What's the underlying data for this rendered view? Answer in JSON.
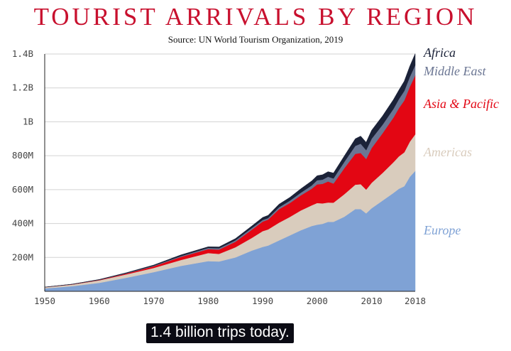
{
  "chart_data": {
    "type": "area",
    "stacked": true,
    "title": "TOURIST ARRIVALS BY REGION",
    "subtitle": "Source: UN World Tourism Organization, 2019",
    "xlabel": "",
    "ylabel": "",
    "xlim": [
      1950,
      2018
    ],
    "ylim": [
      0,
      1400000000
    ],
    "grid": "horizontal",
    "legend_placement": "right",
    "x_ticks": [
      "1950",
      "1960",
      "1970",
      "1980",
      "1990",
      "2000",
      "2010",
      "2018"
    ],
    "x_tick_values": [
      1950,
      1960,
      1970,
      1980,
      1990,
      2000,
      2010,
      2018
    ],
    "y_ticks": [
      "200M",
      "400M",
      "600M",
      "800M",
      "1B",
      "1.2B",
      "1.4B"
    ],
    "y_tick_values": [
      200000000,
      400000000,
      600000000,
      800000000,
      1000000000,
      1200000000,
      1400000000
    ],
    "x": [
      1950,
      1955,
      1960,
      1965,
      1970,
      1975,
      1980,
      1982,
      1985,
      1988,
      1990,
      1991,
      1993,
      1995,
      1997,
      1999,
      2000,
      2001,
      2002,
      2003,
      2005,
      2007,
      2008,
      2009,
      2010,
      2012,
      2014,
      2015,
      2016,
      2017,
      2018
    ],
    "series": [
      {
        "name": "Europe",
        "color": "#7fa2d5",
        "values": [
          17000000,
          30000000,
          50000000,
          80000000,
          113000000,
          150000000,
          178000000,
          176000000,
          200000000,
          240000000,
          262000000,
          270000000,
          300000000,
          330000000,
          360000000,
          385000000,
          393000000,
          398000000,
          410000000,
          410000000,
          440000000,
          485000000,
          485000000,
          460000000,
          490000000,
          535000000,
          580000000,
          605000000,
          620000000,
          675000000,
          710000000
        ]
      },
      {
        "name": "Americas",
        "color": "#d9ccbd",
        "values": [
          7000000,
          10000000,
          15000000,
          20000000,
          25000000,
          35000000,
          48000000,
          45000000,
          60000000,
          75000000,
          93000000,
          95000000,
          105000000,
          109000000,
          117000000,
          122000000,
          128000000,
          121000000,
          114000000,
          113000000,
          133000000,
          144000000,
          147000000,
          140000000,
          150000000,
          163000000,
          181000000,
          191000000,
          200000000,
          207000000,
          216000000
        ]
      },
      {
        "name": "Asia & Pacific",
        "color": "#e30613",
        "values": [
          500000,
          1000000,
          2000000,
          5000000,
          10000000,
          18000000,
          23000000,
          25000000,
          32000000,
          48000000,
          56000000,
          58000000,
          79000000,
          82000000,
          89000000,
          98000000,
          110000000,
          115000000,
          124000000,
          113000000,
          154000000,
          182000000,
          184000000,
          181000000,
          205000000,
          234000000,
          264000000,
          284000000,
          306000000,
          324000000,
          348000000
        ]
      },
      {
        "name": "Middle East",
        "color": "#6b7693",
        "values": [
          200000,
          500000,
          1000000,
          2000000,
          3000000,
          5000000,
          7000000,
          8000000,
          9000000,
          10000000,
          10000000,
          9000000,
          12000000,
          14000000,
          16000000,
          19000000,
          24000000,
          25000000,
          28000000,
          30000000,
          37000000,
          47000000,
          55000000,
          52000000,
          55000000,
          50000000,
          51000000,
          54000000,
          56000000,
          58000000,
          60000000
        ]
      },
      {
        "name": "Africa",
        "color": "#1b2238",
        "values": [
          500000,
          1000000,
          2000000,
          3000000,
          4000000,
          7000000,
          7000000,
          8000000,
          10000000,
          12000000,
          15000000,
          16000000,
          18000000,
          19000000,
          23000000,
          27000000,
          27000000,
          29000000,
          30000000,
          32000000,
          35000000,
          42000000,
          45000000,
          46000000,
          50000000,
          52000000,
          55000000,
          53000000,
          58000000,
          63000000,
          68000000
        ]
      }
    ]
  },
  "legend": [
    {
      "name": "Africa",
      "color": "#1b2238"
    },
    {
      "name": "Middle East",
      "color": "#6b7693"
    },
    {
      "name": "Asia & Pacific",
      "color": "#e30613"
    },
    {
      "name": "Americas",
      "color": "#d9ccbd"
    },
    {
      "name": "Europe",
      "color": "#7fa2d5"
    }
  ],
  "caption": "1.4 billion trips today."
}
